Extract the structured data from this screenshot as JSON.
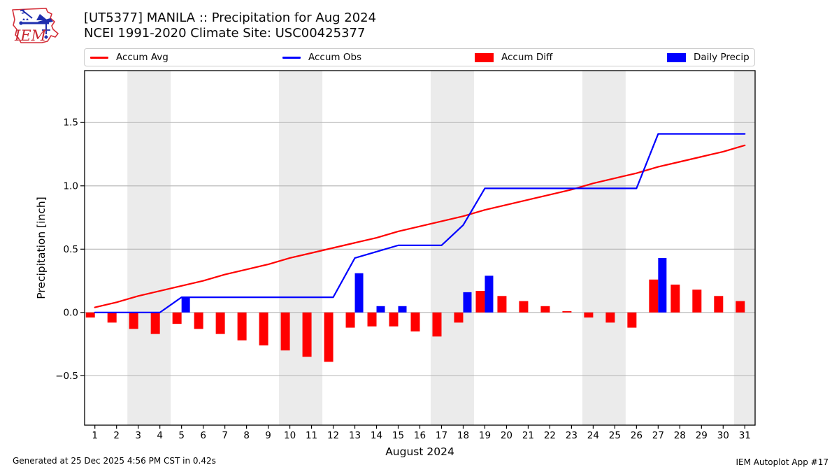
{
  "header": {
    "title_line1": "[UT5377] MANILA :: Precipitation for Aug 2024",
    "title_line2": "NCEI 1991-2020 Climate Site: USC00425377",
    "logo_text": "IEM"
  },
  "legend": {
    "items": [
      {
        "label": "Accum Avg",
        "swatch": "line",
        "color": "#ff0000"
      },
      {
        "label": "Accum Obs",
        "swatch": "line",
        "color": "#0000ff"
      },
      {
        "label": "Accum Diff",
        "swatch": "rect",
        "color": "#ff0000"
      },
      {
        "label": "Daily Precip",
        "swatch": "rect",
        "color": "#0000ff"
      }
    ]
  },
  "footer": {
    "generated": "Generated at 25 Dec 2025 4:56 PM CST in 0.42s",
    "app": "IEM Autoplot App #17"
  },
  "chart_data": {
    "type": "line+bar combo",
    "title": "[UT5377] MANILA :: Precipitation for Aug 2024",
    "subtitle": "NCEI 1991-2020 Climate Site: USC00425377",
    "xlabel": "August 2024",
    "ylabel": "Precipitation [inch]",
    "x": [
      1,
      2,
      3,
      4,
      5,
      6,
      7,
      8,
      9,
      10,
      11,
      12,
      13,
      14,
      15,
      16,
      17,
      18,
      19,
      20,
      21,
      22,
      23,
      24,
      25,
      26,
      27,
      28,
      29,
      30,
      31
    ],
    "yticks": [
      -0.5,
      0.0,
      0.5,
      1.0,
      1.5
    ],
    "ylim": [
      -0.89,
      1.91
    ],
    "xlim": [
      0.525,
      31.475
    ],
    "grid": true,
    "legend_position": "top row, outside axes",
    "grid_color": "#b4b4b4",
    "band_color": "#ebebeb",
    "weekend_bands": [
      [
        2.5,
        4.5
      ],
      [
        9.5,
        11.5
      ],
      [
        16.5,
        18.5
      ],
      [
        23.5,
        25.5
      ],
      [
        30.5,
        31.475
      ]
    ],
    "series": [
      {
        "name": "Accum Avg",
        "type": "line",
        "color": "#ff0000",
        "values": [
          0.04,
          0.08,
          0.13,
          0.17,
          0.21,
          0.25,
          0.3,
          0.34,
          0.38,
          0.43,
          0.47,
          0.51,
          0.55,
          0.59,
          0.64,
          0.68,
          0.72,
          0.76,
          0.81,
          0.85,
          0.89,
          0.93,
          0.97,
          1.02,
          1.06,
          1.1,
          1.15,
          1.19,
          1.23,
          1.27,
          1.32
        ]
      },
      {
        "name": "Accum Obs",
        "type": "line",
        "color": "#0000ff",
        "values": [
          0,
          0,
          0,
          0,
          0.12,
          0.12,
          0.12,
          0.12,
          0.12,
          0.12,
          0.12,
          0.12,
          0.43,
          0.48,
          0.53,
          0.53,
          0.53,
          0.69,
          0.98,
          0.98,
          0.98,
          0.98,
          0.98,
          0.98,
          0.98,
          0.98,
          1.41,
          1.41,
          1.41,
          1.41,
          1.41
        ]
      },
      {
        "name": "Accum Diff",
        "type": "bar",
        "color": "#ff0000",
        "values": [
          -0.04,
          -0.08,
          -0.13,
          -0.17,
          -0.09,
          -0.13,
          -0.17,
          -0.22,
          -0.26,
          -0.3,
          -0.35,
          -0.39,
          -0.12,
          -0.11,
          -0.11,
          -0.15,
          -0.19,
          -0.08,
          0.17,
          0.13,
          0.09,
          0.05,
          0.01,
          -0.04,
          -0.08,
          -0.12,
          0.26,
          0.22,
          0.18,
          0.13,
          0.09
        ]
      },
      {
        "name": "Daily Precip",
        "type": "bar",
        "color": "#0000ff",
        "values": [
          0,
          0,
          0,
          0,
          0.12,
          0,
          0,
          0,
          0,
          0,
          0,
          0,
          0.31,
          0.05,
          0.05,
          0,
          0,
          0.16,
          0.29,
          0,
          0,
          0,
          0,
          0,
          0,
          0,
          0.43,
          0,
          0,
          0,
          0
        ]
      }
    ]
  }
}
